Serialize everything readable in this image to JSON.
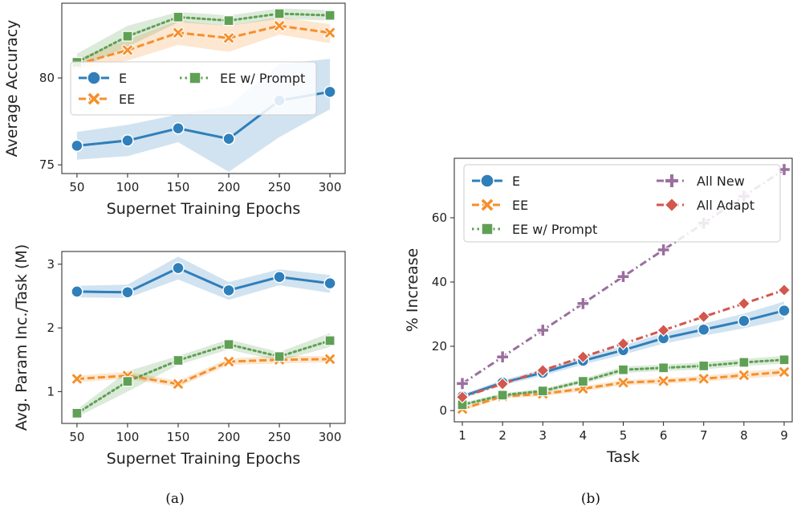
{
  "colors": {
    "E": "#2f7fba",
    "EE": "#f5902c",
    "EE w/ Prompt": "#5fa055",
    "All New": "#9b6f9f",
    "All Adapt": "#d2574d"
  },
  "captions": {
    "a": "(a)",
    "b": "(b)"
  },
  "chart_data": [
    {
      "type": "line",
      "x": [
        50,
        100,
        150,
        200,
        250,
        300
      ],
      "xlabel": "Supernet Training Epochs",
      "ylabel": "Average Accuracy",
      "ylim": [
        74.5,
        84.3
      ],
      "xlim": [
        35,
        315
      ],
      "yticks": [
        75,
        80
      ],
      "legend_position": "middle-left",
      "legend_columns": 2,
      "series": [
        {
          "name": "E",
          "values": [
            76.1,
            76.4,
            77.1,
            76.5,
            78.7,
            79.2
          ],
          "lower": [
            75.3,
            75.5,
            76.3,
            74.6,
            76.6,
            78.2
          ],
          "upper": [
            76.9,
            77.3,
            77.9,
            78.4,
            80.8,
            81.1
          ],
          "marker": "circle",
          "dash": "solid"
        },
        {
          "name": "EE",
          "values": [
            80.8,
            81.6,
            82.6,
            82.3,
            83.0,
            82.6
          ],
          "lower": [
            80.5,
            81.0,
            81.9,
            81.5,
            82.5,
            82.0
          ],
          "upper": [
            81.1,
            82.2,
            83.3,
            83.0,
            83.5,
            83.1
          ],
          "marker": "x",
          "dash": "dashed"
        },
        {
          "name": "EE w/ Prompt",
          "values": [
            80.9,
            82.4,
            83.5,
            83.3,
            83.7,
            83.6
          ],
          "lower": [
            80.5,
            81.8,
            83.2,
            83.0,
            83.4,
            83.3
          ],
          "upper": [
            81.4,
            83.0,
            83.8,
            83.6,
            84.0,
            83.9
          ],
          "marker": "square",
          "dash": "dotted"
        }
      ]
    },
    {
      "type": "line",
      "x": [
        50,
        100,
        150,
        200,
        250,
        300
      ],
      "xlabel": "Supernet Training Epochs",
      "ylabel": "Avg. Param Inc./Task (M)",
      "ylim": [
        0.5,
        3.2
      ],
      "xlim": [
        35,
        315
      ],
      "yticks": [
        1,
        2,
        3
      ],
      "series": [
        {
          "name": "E",
          "values": [
            2.57,
            2.56,
            2.94,
            2.59,
            2.8,
            2.7
          ],
          "lower": [
            2.48,
            2.47,
            2.76,
            2.44,
            2.67,
            2.55
          ],
          "upper": [
            2.66,
            2.68,
            3.12,
            2.72,
            2.92,
            2.83
          ],
          "marker": "circle",
          "dash": "solid"
        },
        {
          "name": "EE",
          "values": [
            1.2,
            1.25,
            1.12,
            1.47,
            1.5,
            1.51
          ],
          "lower": [
            1.15,
            1.2,
            1.07,
            1.42,
            1.44,
            1.46
          ],
          "upper": [
            1.25,
            1.31,
            1.17,
            1.52,
            1.56,
            1.56
          ],
          "marker": "x",
          "dash": "dashed"
        },
        {
          "name": "EE w/ Prompt",
          "values": [
            0.66,
            1.16,
            1.49,
            1.74,
            1.55,
            1.8
          ],
          "lower": [
            0.6,
            1.0,
            1.42,
            1.66,
            1.48,
            1.7
          ],
          "upper": [
            0.72,
            1.32,
            1.56,
            1.82,
            1.62,
            1.92
          ],
          "marker": "square",
          "dash": "dotted"
        }
      ]
    },
    {
      "type": "line",
      "x": [
        1,
        2,
        3,
        4,
        5,
        6,
        7,
        8,
        9
      ],
      "xlabel": "Task",
      "ylabel": "% Increase",
      "ylim": [
        -3.5,
        78.5
      ],
      "xlim": [
        0.8,
        9.2
      ],
      "yticks": [
        0,
        20,
        40,
        60
      ],
      "legend_position": "upper-left",
      "legend_columns": 2,
      "series": [
        {
          "name": "E",
          "values": [
            4.4,
            8.7,
            11.8,
            15.5,
            18.8,
            22.5,
            25.2,
            27.9,
            31.1
          ],
          "lower": [
            3.7,
            7.9,
            10.8,
            14.3,
            17.4,
            20.8,
            23.3,
            25.6,
            28.3
          ],
          "upper": [
            5.1,
            9.5,
            12.8,
            16.7,
            20.2,
            24.2,
            27.1,
            30.2,
            33.9
          ],
          "marker": "circle",
          "dash": "solid"
        },
        {
          "name": "EE",
          "values": [
            0.5,
            4.4,
            5.2,
            6.8,
            8.7,
            9.2,
            9.9,
            11.0,
            12.0
          ],
          "lower": [
            0.0,
            3.8,
            4.5,
            6.0,
            7.9,
            8.3,
            9.0,
            9.9,
            10.8
          ],
          "upper": [
            1.0,
            5.0,
            5.9,
            7.6,
            9.5,
            10.1,
            10.8,
            12.1,
            13.2
          ],
          "marker": "x",
          "dash": "dashed"
        },
        {
          "name": "EE w/ Prompt",
          "values": [
            1.8,
            4.8,
            6.1,
            9.1,
            12.7,
            13.3,
            13.9,
            15.0,
            15.8
          ],
          "lower": [
            1.2,
            4.2,
            5.4,
            8.3,
            11.7,
            12.3,
            12.8,
            13.9,
            14.6
          ],
          "upper": [
            2.4,
            5.4,
            6.8,
            9.9,
            13.7,
            14.3,
            15.0,
            16.1,
            17.0
          ],
          "marker": "square",
          "dash": "dotted"
        },
        {
          "name": "All New",
          "values": [
            8.4,
            16.7,
            25.0,
            33.3,
            41.7,
            50.0,
            58.3,
            66.7,
            75.0
          ],
          "marker": "plus",
          "dash": "dashdot"
        },
        {
          "name": "All Adapt",
          "values": [
            4.2,
            8.3,
            12.5,
            16.7,
            20.8,
            25.0,
            29.2,
            33.3,
            37.5
          ],
          "marker": "diamond",
          "dash": "dashdot"
        }
      ]
    }
  ]
}
